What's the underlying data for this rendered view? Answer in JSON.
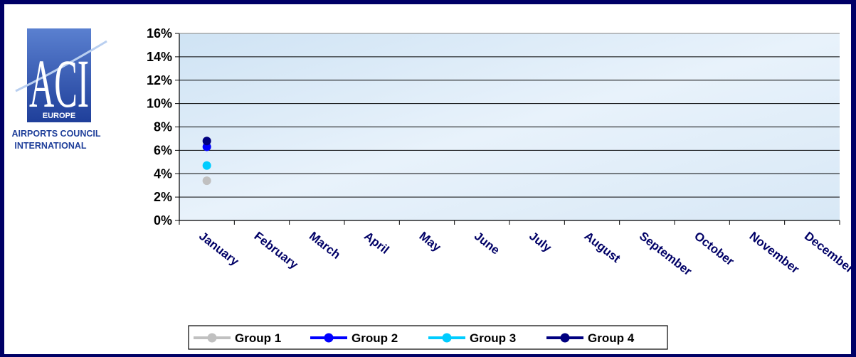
{
  "logo": {
    "big": "ACI",
    "region": "EUROPE",
    "line1": "AIRPORTS COUNCIL",
    "line2": "INTERNATIONAL"
  },
  "chart_data": {
    "type": "scatter",
    "title": "",
    "xlabel": "",
    "ylabel": "",
    "categories": [
      "January",
      "February",
      "March",
      "April",
      "May",
      "June",
      "July",
      "August",
      "September",
      "October",
      "November",
      "December"
    ],
    "ylim": [
      0,
      16
    ],
    "yticks": [
      0,
      2,
      4,
      6,
      8,
      10,
      12,
      14,
      16
    ],
    "ytick_labels": [
      "0%",
      "2%",
      "4%",
      "6%",
      "8%",
      "10%",
      "12%",
      "14%",
      "16%"
    ],
    "grid": true,
    "legend": "bottom",
    "series": [
      {
        "name": "Group 1",
        "color": "#c0c0c0",
        "values": [
          3.4,
          null,
          null,
          null,
          null,
          null,
          null,
          null,
          null,
          null,
          null,
          null
        ]
      },
      {
        "name": "Group 2",
        "color": "#0000ff",
        "values": [
          6.3,
          null,
          null,
          null,
          null,
          null,
          null,
          null,
          null,
          null,
          null,
          null
        ]
      },
      {
        "name": "Group 3",
        "color": "#00ccff",
        "values": [
          4.7,
          null,
          null,
          null,
          null,
          null,
          null,
          null,
          null,
          null,
          null,
          null
        ]
      },
      {
        "name": "Group 4",
        "color": "#000080",
        "values": [
          6.8,
          null,
          null,
          null,
          null,
          null,
          null,
          null,
          null,
          null,
          null,
          null
        ]
      }
    ]
  },
  "colors": {
    "frame": "#000066",
    "month_label": "#000066",
    "gridline": "#000000",
    "logo_blue": "#1f3f9a"
  }
}
